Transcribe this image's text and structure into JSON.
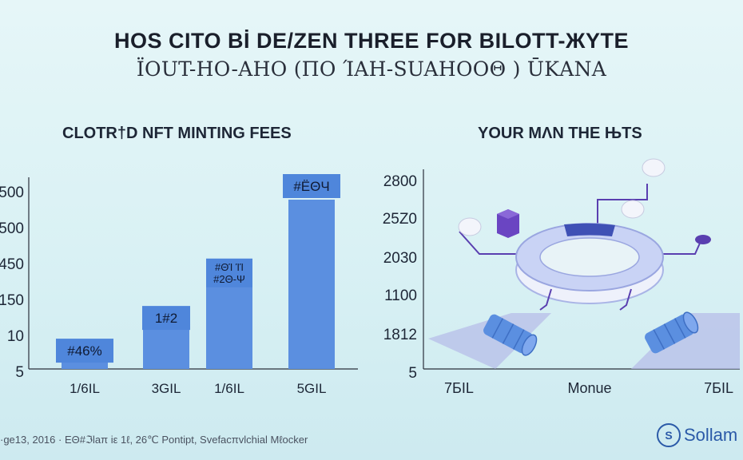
{
  "header": {
    "title": "HOS CITO Bİ DE/ZEN THREE FOR BILOTT-ЖYTE",
    "subtitle": "ΪOUT-HO-AHO (ΠΟ ΊΑΗ-SUAΗΟΟΘ ) ŪΚΑΝΑ"
  },
  "chart_data": [
    {
      "type": "bar",
      "title": "CLOTR†D NFT MINTING FEES",
      "categories": [
        "1/6IL",
        "3GIL",
        "1/6IL",
        "5GIL"
      ],
      "values": [
        8,
        12,
        26,
        50
      ],
      "data_labels": [
        "#46%",
        "1#2",
        "#ΘΊ ΊΊ #2Θ-Ψ",
        "#ЁΘЧ"
      ],
      "y_tick_labels": [
        "500",
        "500",
        "450",
        "150",
        "10",
        "5"
      ],
      "xlabel": "",
      "ylabel": "",
      "grid": false,
      "colors": {
        "bar": "#5b8fe0",
        "label_box": "#4f86db"
      }
    },
    {
      "type": "diagram",
      "title": "YOUR MΛN THE ЊTS",
      "y_tick_labels": [
        "2800",
        "25Z0",
        "2030",
        "1100",
        "1812",
        "5"
      ],
      "x_tick_labels": [
        "7БIL",
        "Monue",
        "7БIL"
      ],
      "colors": {
        "ring": "#c9d3f5",
        "ring_segment": "#3f51b5",
        "cylinder": "#5b8fe0",
        "line": "#5a3fb0",
        "floor": "#b7bde8"
      }
    }
  ],
  "footer": {
    "text": "·ge13, 2016 · ΕΘ#ℑlaπ iε 1ℓ, 26℃ Pontipt, Svefacπvlchial Mℓocker",
    "brand": "Sollam",
    "brand_logo": "S"
  }
}
